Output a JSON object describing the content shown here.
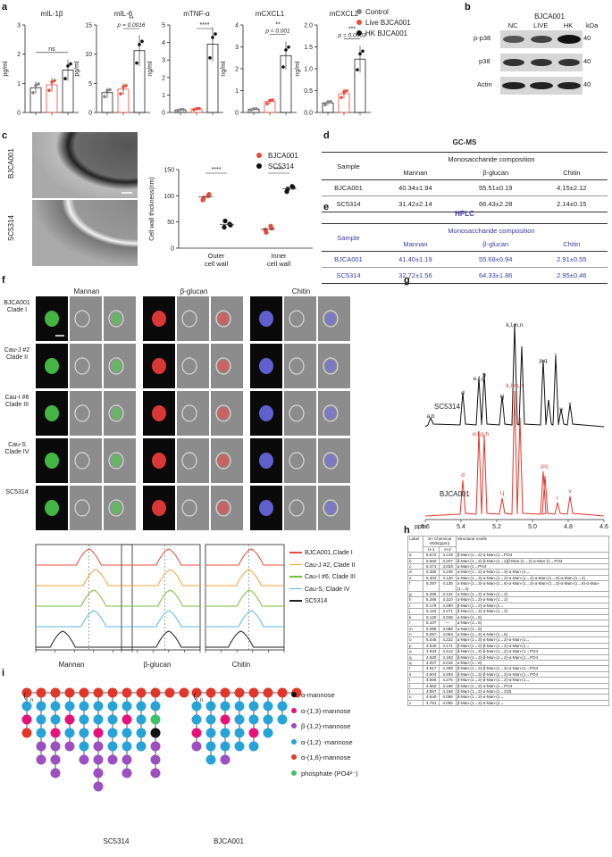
{
  "panels": {
    "a": "a",
    "b": "b",
    "c": "c",
    "d": "d",
    "e": "e",
    "f": "f",
    "g": "g",
    "h": "h",
    "i": "i"
  },
  "a": {
    "charts": [
      {
        "title": "mIL-1β",
        "ylabel": "pg/ml",
        "yticks": [
          "0",
          "1",
          "2",
          "3"
        ],
        "ymax": 3,
        "bars": [
          0.85,
          0.95,
          1.45
        ],
        "annot": "ns",
        "p": ""
      },
      {
        "title": "mIL-6",
        "ylabel": "pg/ml",
        "yticks": [
          "0",
          "5",
          "10",
          "15"
        ],
        "ymax": 15,
        "bars": [
          3.4,
          4.0,
          10.6
        ],
        "annot": "**",
        "p": "p = 0.0016"
      },
      {
        "title": "mTNF-α",
        "ylabel": "ng/ml",
        "yticks": [
          "0",
          "1",
          "2",
          "3",
          "4",
          "5"
        ],
        "ymax": 5,
        "bars": [
          0.15,
          0.2,
          3.9
        ],
        "annot": "****",
        "p": ""
      },
      {
        "title": "mCXCL1",
        "ylabel": "ng/ml",
        "yticks": [
          "0",
          "1",
          "2",
          "3",
          "4"
        ],
        "ymax": 4,
        "bars": [
          0.15,
          0.5,
          2.6
        ],
        "annot": "**",
        "p": "p = 0.001"
      },
      {
        "title": "mCXCL2",
        "ylabel": "ng/ml",
        "yticks": [
          "0.0",
          "0.5",
          "1.0",
          "1.5",
          "2.0"
        ],
        "ymax": 2,
        "bars": [
          0.22,
          0.43,
          1.22
        ],
        "annot": "***",
        "p": "p = 0.0003"
      }
    ],
    "legend": [
      "Control",
      "Live BJCA001",
      "HK BJCA001"
    ],
    "colors": {
      "control": "#888888",
      "live": "#e84c3d",
      "hk": "#111111"
    }
  },
  "b": {
    "title": "BJCA001",
    "lanes": [
      "NC",
      "LIVE",
      "HK"
    ],
    "unit": "kDa",
    "rows": [
      {
        "label": "p-p38",
        "kda": "40"
      },
      {
        "label": "p38",
        "kda": "40"
      },
      {
        "label": "Actin",
        "kda": "40"
      }
    ]
  },
  "c": {
    "img_labels": [
      "BJCA001",
      "SC5314"
    ],
    "legend": [
      "BJCA001",
      "SC5314"
    ],
    "ylabel": "Cell wall thickness(nm)",
    "yticks": [
      "0",
      "50",
      "100",
      "150"
    ],
    "groups": [
      "Outer cell wall",
      "Inner cell wall"
    ],
    "sig": [
      "****",
      "****"
    ],
    "chart_data": {
      "type": "scatter",
      "ylim": [
        0,
        150
      ],
      "series": [
        {
          "name": "BJCA001",
          "outer": [
            92,
            100,
            96,
            103
          ],
          "inner": [
            35,
            42,
            30,
            38
          ]
        },
        {
          "name": "SC5314",
          "outer": [
            40,
            46,
            52,
            44
          ],
          "inner": [
            108,
            118,
            113,
            116
          ]
        }
      ]
    }
  },
  "d": {
    "method": "GC-MS",
    "sample_hdr": "Sample",
    "group_hdr": "Monosaccharide composition",
    "cols": [
      "Mannan",
      "β-glucan",
      "Chitin"
    ],
    "rows": [
      [
        "BJCA001",
        "40.34±1.94",
        "55.51±0.19",
        "4.15±2.12"
      ],
      [
        "SC5314",
        "31.42±2.14",
        "66.43±2.28",
        "2.14±0.15"
      ]
    ]
  },
  "e": {
    "method": "HPLC",
    "sample_hdr": "Sample",
    "group_hdr": "Monosaccharide composition",
    "cols": [
      "Mannan",
      "β-glucan",
      "Chitin"
    ],
    "rows": [
      [
        "BJCA001",
        "41.40±1.19",
        "55.68±0.94",
        "2.91±0.55"
      ],
      [
        "SC5314",
        "32.72±1.56",
        "64.33±1.86",
        "2.95±0.46"
      ]
    ]
  },
  "f": {
    "col_headers": [
      "Mannan",
      "β-glucan",
      "Chitin"
    ],
    "rows": [
      "BJCA001 Clade I",
      "Cau-J #2 Clade II",
      "Cau-I #6 Clade III",
      "Cau-S Clade IV",
      "SC5314"
    ],
    "legend": [
      "BJCA001,Clade I",
      "Cau-J #2, Clade II",
      "Cau-I #6, Clade III",
      "Cau-S, Clade IV",
      "SC5314"
    ],
    "legend_colors": [
      "#e84c3d",
      "#f2a33a",
      "#7bbf3a",
      "#5db7e8",
      "#222222"
    ],
    "xlabels": [
      "Mannan",
      "β-glucan",
      "Chitin"
    ]
  },
  "g": {
    "sample1": "SC5314",
    "sample2": "BJCA001",
    "labels1": [
      "a,b",
      "d",
      "e,f,g",
      "h",
      "i,j",
      "k,l,m,n",
      "p,q",
      "r",
      "t",
      "u",
      "v"
    ],
    "labels2": [
      "d",
      "e,f,g,h",
      "i,j",
      "k,l,m,n",
      "p",
      "q",
      "r",
      "v"
    ],
    "xlabel": "ppm",
    "xticks": [
      "5.6",
      "5.4",
      "5.2",
      "5.0",
      "4.8",
      "4.6"
    ]
  },
  "h": {
    "head": [
      "Label",
      "1H Chemical shifts(ppm)",
      "Structural motifs"
    ],
    "sub": [
      "H-1",
      "H-2"
    ],
    "rows": [
      [
        "a",
        "5.572",
        "4.219",
        "β-Man-(1→2)-α-Man-(1→PO4"
      ],
      [
        "b",
        "5.560",
        "4.207",
        "β-Man-(1→2)-β-Man-(1→2)β-Man-(1→2)-α-Man-(1→PO4"
      ],
      [
        "c",
        "5.471",
        "4.033",
        "α-Man-(1→PO4"
      ],
      [
        "d",
        "5.385",
        "4.109",
        "α-Man-(1→2)-α-Man-(1→3)-α-Man-(1→"
      ],
      [
        "e",
        "5.303",
        "4.120",
        "α-Man-(1→3)-α-Man-(1→2)-α-Man-(1→3)-α-Man-(1→6)-α-Man-(1→2)"
      ],
      [
        "f",
        "5.297",
        "4.135",
        "α-Man-(1→3)-α-Man-(1→6)-α-Man-(1→2)-α-Man-(1→3)-α-Man-(1→6)-α-Man-(1→2)"
      ],
      [
        "g",
        "5.286",
        "4.132",
        "α-Man-(1→2)-α-Man-(1→2)"
      ],
      [
        "h",
        "5.266",
        "4.110",
        "α-Man-(1→2)-α-Man-(1→2)"
      ],
      [
        "i",
        "5.179",
        "4.290",
        "β-Man-(1→2)-α-Man-(1→"
      ],
      [
        "j",
        "5.162",
        "4.271",
        "β-Man-(1→2)-α-Man-(1→2)"
      ],
      [
        "k",
        "5.120",
        "4.048",
        "α-Man-(1→6)"
      ],
      [
        "l",
        "5.107",
        "—",
        "α-Man-(1→6)"
      ],
      [
        "m",
        "5.088",
        "4.089",
        "α-Man-(1→6)"
      ],
      [
        "n",
        "5.067",
        "4.063",
        "α-Man-(1→2)-α-Man-(1→6)"
      ],
      [
        "o",
        "5.045",
        "4.222",
        "α-Man-(1→3)-α-Man-(1→2)-α-Man-(1→"
      ],
      [
        "p",
        "4.940",
        "4.171",
        "β-Man-(1→2)-β-Man-(1→2)-α-Man-(1→"
      ],
      [
        "q",
        "4.933",
        "4.414",
        "β-Man-(1→2)-β-Man-(1→2)-α-Man-(1→PO4"
      ],
      [
        "q",
        "4.930",
        "4.163",
        "β-Man-(1→2)-β-Man-(1→2)-α-Man-(1→PO4"
      ],
      [
        "q",
        "4.927",
        "4.016",
        "α-Man-(1→6)"
      ],
      [
        "r",
        "4.917",
        "4.309",
        "β-Man-(1→2)-β-Man-(1→2)-α-Man-(1→PO4"
      ],
      [
        "s",
        "4.904",
        "4.293",
        "β-Man-(1→2)-β-Man-(1→2)-α-Man-(1→PO4"
      ],
      [
        "t",
        "4.866",
        "4.276",
        "β-Man-(1→2)-β-Man-(1→2)-α-Man-(1→"
      ],
      [
        "t",
        "4.862",
        "4.168",
        "β-Man-(1→2)-α-Man-(1→PO4"
      ],
      [
        "t",
        "4.857",
        "4.168",
        "β-Man-(1→2)-α-Man-(1→2(3)"
      ],
      [
        "u",
        "4.840",
        "4.088",
        "β-Man-(1→2)-α-Man-(1→"
      ],
      [
        "v",
        "4.791",
        "4.056",
        "β-Man-(1→2)-α-Man-(1→"
      ]
    ]
  },
  "i": {
    "legend": [
      "α-mannose",
      "α-(1,3)-mannose",
      "β-(1,2)-mannose",
      "α-(1,2) -mannose",
      "α-(1,6)-mannose",
      "phosphate (PO4²⁻)"
    ],
    "colors": [
      "#111111",
      "#e6127a",
      "#9b4fc0",
      "#27a3d8",
      "#e3362a",
      "#3cc26b"
    ],
    "captions": [
      "SC5314",
      "BJCA001"
    ]
  }
}
